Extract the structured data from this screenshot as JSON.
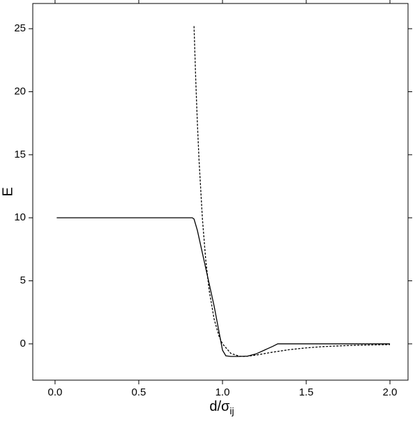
{
  "chart_data": {
    "type": "line",
    "xlabel": {
      "text": "d/σ",
      "subscript": "ij"
    },
    "ylabel": "E",
    "xlim": [
      -0.133,
      2.108
    ],
    "ylim": [
      -2.88,
      27.0
    ],
    "xticks": [
      {
        "value": 0,
        "label": "0.0"
      },
      0.5,
      {
        "value": 1,
        "label": "1.0"
      },
      1.5,
      {
        "value": 2,
        "label": "2.0"
      }
    ],
    "yticks": [
      0,
      5,
      10,
      15,
      20,
      25
    ],
    "series": [
      {
        "color": "#000000",
        "dash": "solid",
        "x": [
          0.01,
          0.82,
          0.83,
          0.85,
          0.9,
          0.95,
          1.0,
          1.02,
          1.05,
          1.1,
          1.15,
          1.2,
          1.25,
          1.3,
          1.33,
          1.5,
          2.0
        ],
        "values": [
          10,
          10,
          9.9,
          9.0,
          6.0,
          3.0,
          -0.5,
          -0.95,
          -1.0,
          -1.0,
          -0.97,
          -0.8,
          -0.5,
          -0.2,
          0,
          0,
          0
        ]
      },
      {
        "color": "#000000",
        "dash": "dashed",
        "x": [
          0.83,
          0.84,
          0.85,
          0.86,
          0.88,
          0.9,
          0.92,
          0.95,
          0.98,
          1.0,
          1.05,
          1.1,
          1.122,
          1.15,
          1.2,
          1.3,
          1.4,
          1.5,
          1.6,
          1.7,
          1.8,
          1.9,
          2.0
        ],
        "values": [
          25.2,
          21.03,
          17.51,
          14.55,
          9.93,
          6.64,
          4.28,
          1.96,
          0.58,
          0,
          -0.76,
          -0.98,
          -1.0,
          -0.98,
          -0.89,
          -0.66,
          -0.46,
          -0.32,
          -0.22,
          -0.16,
          -0.11,
          -0.083,
          -0.062
        ]
      }
    ]
  }
}
